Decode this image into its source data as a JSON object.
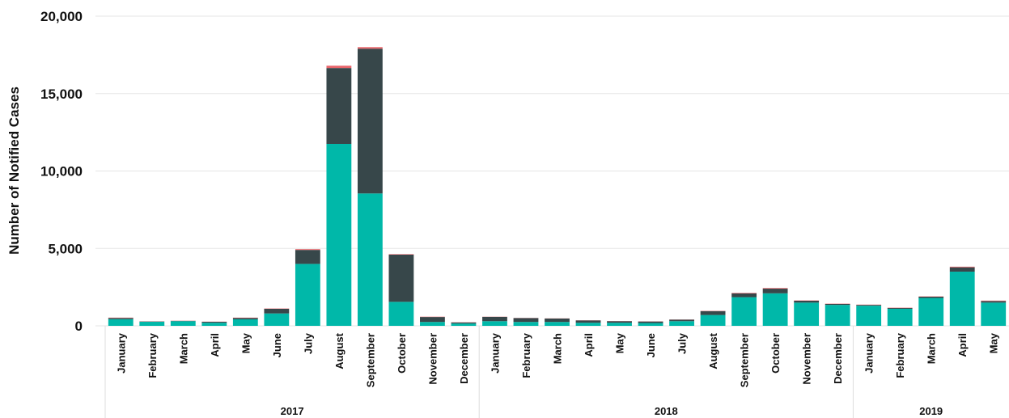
{
  "chart_data": {
    "type": "bar",
    "stacked": true,
    "title": "",
    "ylabel": "Number of Notified Cases",
    "xlabel": "",
    "ylim": [
      0,
      20000
    ],
    "yticks": [
      "0",
      "5,000",
      "10,000",
      "15,000",
      "20,000"
    ],
    "ytick_values": [
      0,
      5000,
      10000,
      15000,
      20000
    ],
    "grid": "horizontal",
    "legend": "none",
    "colors": {
      "bottom": "#00b8a9",
      "middle": "#37474a",
      "top": "#e8646a",
      "grid": "#e6e6e6"
    },
    "year_groups": [
      {
        "label": "2017",
        "count": 12
      },
      {
        "label": "2018",
        "count": 12
      },
      {
        "label": "2019",
        "count": 5
      }
    ],
    "categories": [
      "January",
      "February",
      "March",
      "April",
      "May",
      "June",
      "July",
      "August",
      "September",
      "October",
      "November",
      "December",
      "January",
      "February",
      "March",
      "April",
      "May",
      "June",
      "July",
      "August",
      "September",
      "October",
      "November",
      "December",
      "January",
      "February",
      "March",
      "April",
      "May"
    ],
    "series": [
      {
        "values": [
          430,
          260,
          300,
          200,
          420,
          800,
          4000,
          11750,
          8550,
          1550,
          250,
          150,
          300,
          250,
          250,
          200,
          200,
          180,
          300,
          700,
          1850,
          2100,
          1500,
          1350,
          1300,
          1100,
          1800,
          3500,
          1500
        ]
      },
      {
        "values": [
          80,
          20,
          20,
          60,
          90,
          300,
          900,
          4900,
          9350,
          3050,
          320,
          70,
          280,
          250,
          220,
          150,
          100,
          100,
          100,
          250,
          250,
          300,
          120,
          60,
          50,
          50,
          80,
          280,
          100
        ]
      },
      {
        "values": [
          20,
          10,
          10,
          10,
          20,
          20,
          50,
          150,
          100,
          30,
          20,
          10,
          10,
          10,
          10,
          10,
          10,
          10,
          10,
          20,
          30,
          40,
          20,
          20,
          20,
          20,
          20,
          40,
          30
        ]
      }
    ]
  }
}
